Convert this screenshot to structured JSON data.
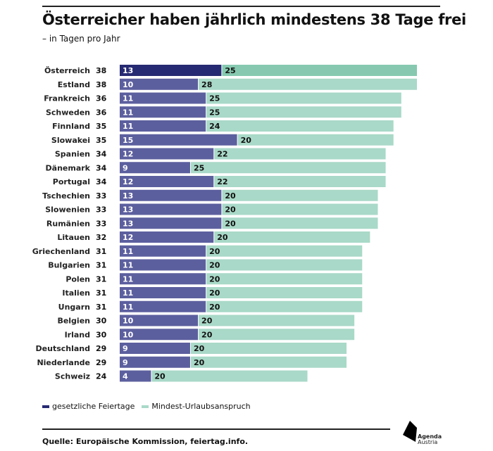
{
  "header": {
    "title": "Österreicher haben jährlich mindestens 38 Tage frei",
    "subtitle": "– in Tagen pro Jahr"
  },
  "legend": {
    "items": [
      {
        "label": "gesetzliche Feiertage",
        "color": "#5c5f9e"
      },
      {
        "label": "Mindest-Urlaubsanspruch",
        "color": "#a9d9c8"
      }
    ]
  },
  "colors": {
    "holiday_highlight": "#262a72",
    "holiday": "#5c5f9e",
    "vacation_highlight": "#86c9b0",
    "vacation": "#a9d9c8"
  },
  "footer": {
    "source": "Quelle: Europäische Kommission, feiertag.info.",
    "logo_line1": "Agenda",
    "logo_line2": "Austria"
  },
  "chart_data": {
    "type": "bar",
    "orientation": "horizontal",
    "stacked": true,
    "title": "Österreicher haben jährlich mindestens 38 Tage frei",
    "subtitle": "– in Tagen pro Jahr",
    "xlabel": "",
    "ylabel": "",
    "xlim": [
      0,
      38
    ],
    "grid": false,
    "legend_position": "bottom-left",
    "highlight": "Österreich",
    "categories": [
      "Österreich",
      "Estland",
      "Frankreich",
      "Schweden",
      "Finnland",
      "Slowakei",
      "Spanien",
      "Dänemark",
      "Portugal",
      "Tschechien",
      "Slowenien",
      "Rumänien",
      "Litauen",
      "Griechenland",
      "Bulgarien",
      "Polen",
      "Italien",
      "Ungarn",
      "Belgien",
      "Irland",
      "Deutschland",
      "Niederlande",
      "Schweiz"
    ],
    "totals": [
      38,
      38,
      36,
      36,
      35,
      35,
      34,
      34,
      34,
      33,
      33,
      33,
      32,
      31,
      31,
      31,
      31,
      31,
      30,
      30,
      29,
      29,
      24
    ],
    "series": [
      {
        "name": "gesetzliche Feiertage",
        "values": [
          13,
          10,
          11,
          11,
          11,
          15,
          12,
          9,
          12,
          13,
          13,
          13,
          12,
          11,
          11,
          11,
          11,
          11,
          10,
          10,
          9,
          9,
          4
        ]
      },
      {
        "name": "Mindest-Urlaubsanspruch",
        "values": [
          25,
          28,
          25,
          25,
          24,
          20,
          22,
          25,
          22,
          20,
          20,
          20,
          20,
          20,
          20,
          20,
          20,
          20,
          20,
          20,
          20,
          20,
          20
        ]
      }
    ]
  }
}
